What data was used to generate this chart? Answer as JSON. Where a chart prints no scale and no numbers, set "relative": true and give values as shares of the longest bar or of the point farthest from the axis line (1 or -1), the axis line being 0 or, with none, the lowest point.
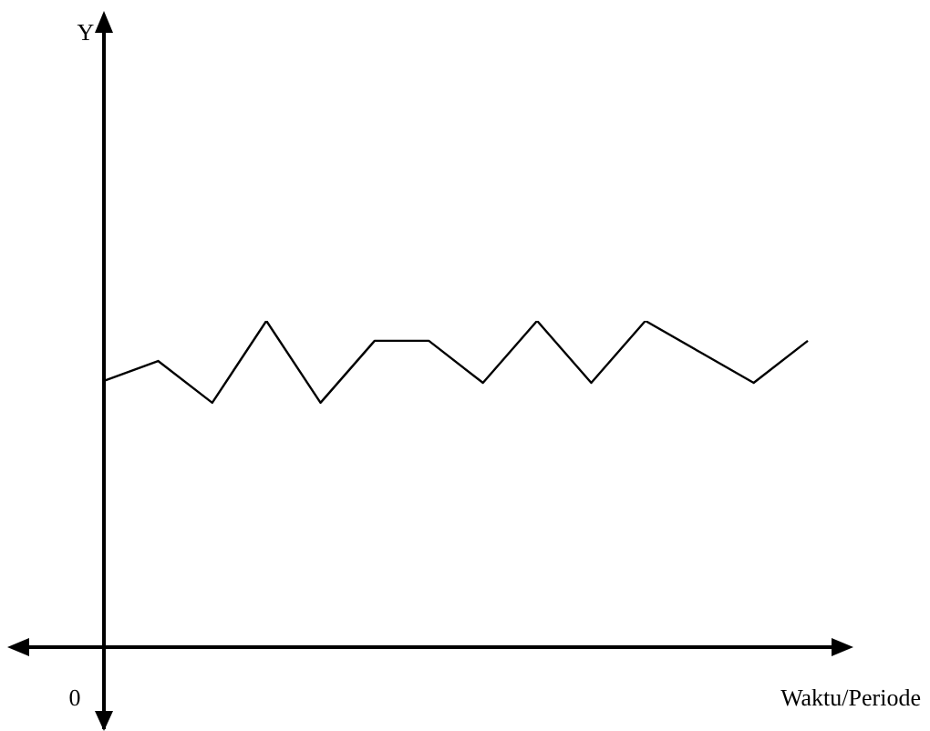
{
  "chart_data": {
    "type": "line",
    "relative": true,
    "xlabel": "Waktu/Periode",
    "annotations": [
      "Y",
      "0"
    ],
    "categories": [
      null,
      null,
      null,
      null,
      null,
      null,
      null,
      null,
      null,
      null,
      null,
      null,
      null,
      null
    ],
    "series": [
      {
        "color": "#000000",
        "values": [
          0.816,
          0.877,
          0.749,
          1,
          0.749,
          0.939,
          0.939,
          0.81,
          1,
          0.81,
          1,
          0.905,
          0.81,
          0.939
        ]
      }
    ],
    "marker": "none"
  }
}
